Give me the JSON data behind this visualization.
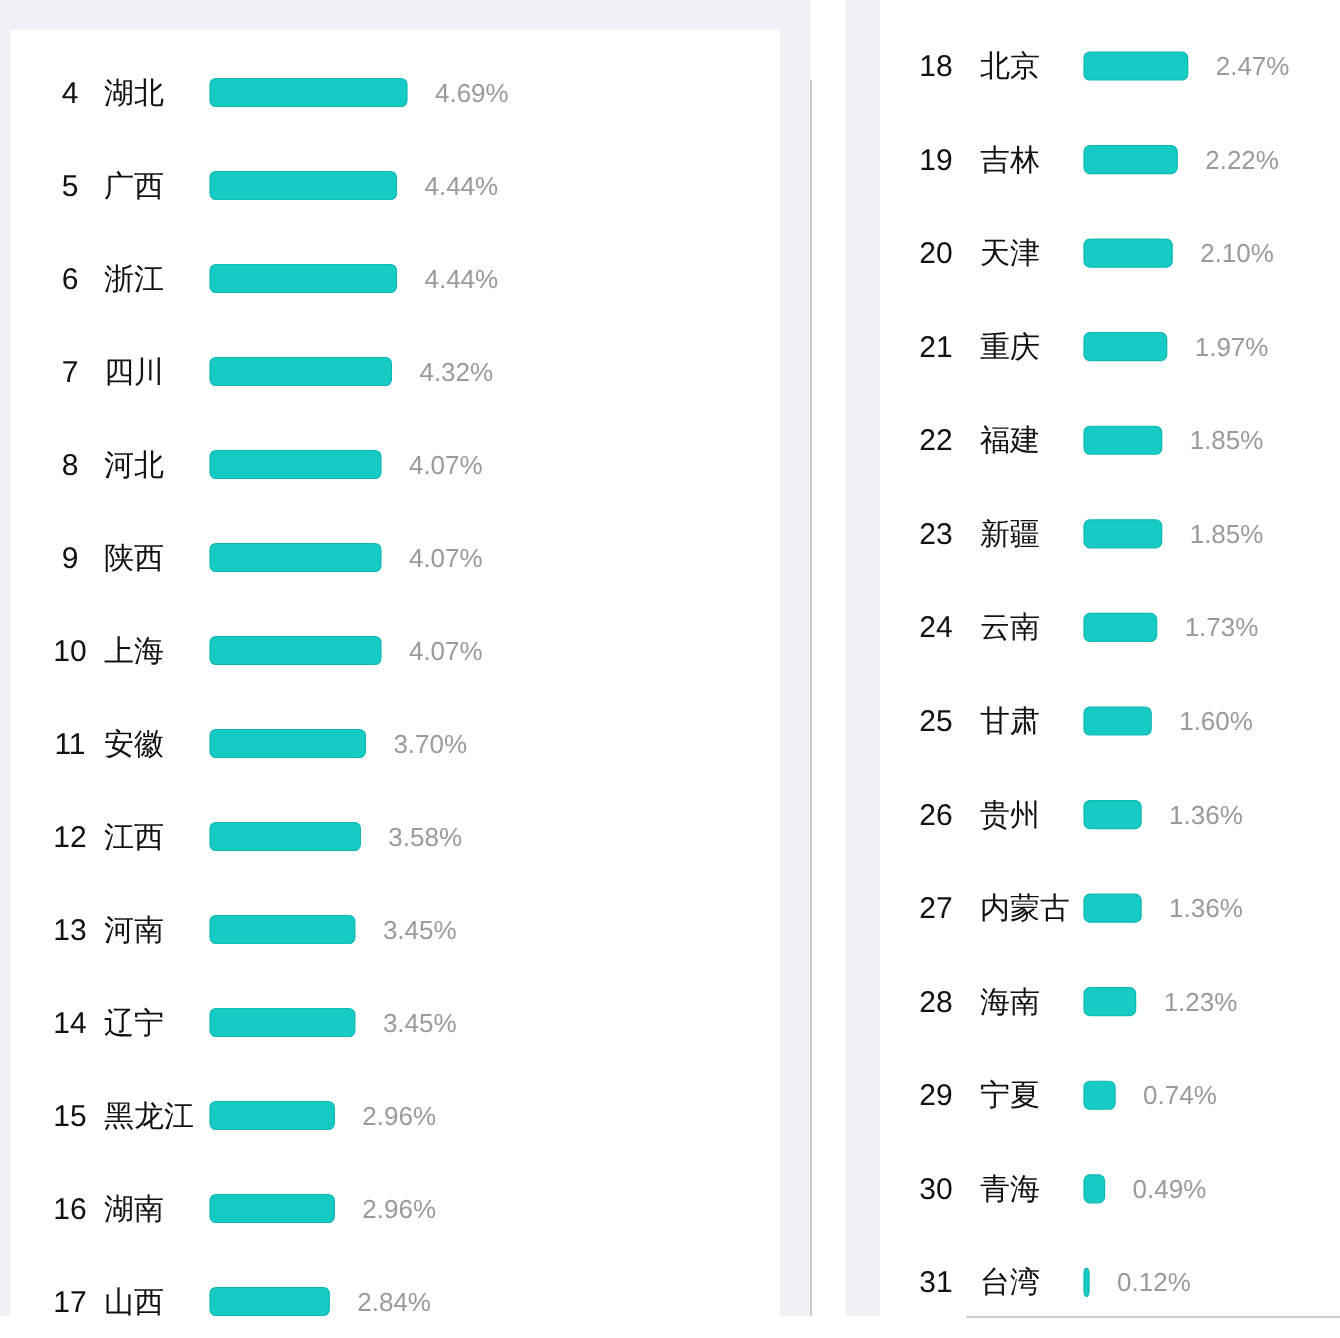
{
  "chart_data": [
    {
      "type": "bar",
      "orientation": "horizontal",
      "categories": [
        "4 湖北",
        "5 广西",
        "6 浙江",
        "7 四川",
        "8 河北",
        "9 陕西",
        "10 上海",
        "11 安徽",
        "12 江西",
        "13 河南",
        "14 辽宁",
        "15 黑龙江",
        "16 湖南",
        "17 山西"
      ],
      "values": [
        4.69,
        4.44,
        4.44,
        4.32,
        4.07,
        4.07,
        4.07,
        3.7,
        3.58,
        3.45,
        3.45,
        2.96,
        2.96,
        2.84
      ],
      "value_labels": [
        "4.69%",
        "4.44%",
        "4.44%",
        "4.32%",
        "4.07%",
        "4.07%",
        "4.07%",
        "3.70%",
        "3.58%",
        "3.45%",
        "3.45%",
        "2.96%",
        "2.96%",
        "2.84%"
      ],
      "color": "#16cbc4",
      "xlim": [
        0,
        13.5
      ]
    },
    {
      "type": "bar",
      "orientation": "horizontal",
      "categories": [
        "18 北京",
        "19 吉林",
        "20 天津",
        "21 重庆",
        "22 福建",
        "23 新疆",
        "24 云南",
        "25 甘肃",
        "26 贵州",
        "27 内蒙古",
        "28 海南",
        "29 宁夏",
        "30 青海",
        "31 台湾"
      ],
      "values": [
        2.47,
        2.22,
        2.1,
        1.97,
        1.85,
        1.85,
        1.73,
        1.6,
        1.36,
        1.36,
        1.23,
        0.74,
        0.49,
        0.12
      ],
      "value_labels": [
        "2.47%",
        "2.22%",
        "2.10%",
        "1.97%",
        "1.85%",
        "1.85%",
        "1.73%",
        "1.60%",
        "1.36%",
        "1.36%",
        "1.23%",
        "0.74%",
        "0.49%",
        "0.12%"
      ],
      "color": "#16cbc4",
      "xlim": [
        0,
        6
      ]
    }
  ]
}
